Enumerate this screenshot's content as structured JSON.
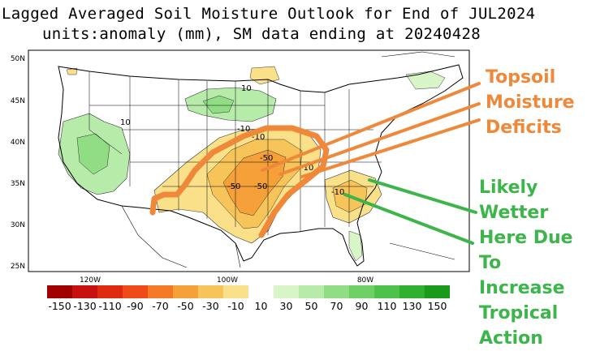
{
  "title_line1": "Lagged Averaged Soil Moisture Outlook for End of JUL2024",
  "title_line2": "units:anomaly (mm), SM data ending at 20240428",
  "lat_labels": [
    "50N",
    "45N",
    "40N",
    "35N",
    "30N",
    "25N"
  ],
  "lon_labels": [
    "120W",
    "100W",
    "80W"
  ],
  "contour_labels": [
    "10",
    "-10",
    "10",
    "-10",
    "-50",
    "-50",
    "-50",
    "-10",
    "-10"
  ],
  "colorbar": {
    "labels": [
      "-150",
      "-130",
      "-110",
      "-90",
      "-70",
      "-50",
      "-30",
      "-10",
      "10",
      "30",
      "50",
      "70",
      "90",
      "110",
      "130",
      "150"
    ],
    "colors": [
      "#a00000",
      "#c81010",
      "#e02a10",
      "#f04a18",
      "#f57a28",
      "#f5a038",
      "#f7c45a",
      "#fbe08a",
      "#ffffff",
      "#d8f5c8",
      "#b6ebaa",
      "#90dd84",
      "#6fd066",
      "#4cc24a",
      "#30b030",
      "#1a9a1a"
    ]
  },
  "callouts": {
    "topsoil": [
      "Topsoil",
      "Moisture",
      "Deficits"
    ],
    "wetter": [
      "Likely Wetter",
      "Here Due To",
      "Increase",
      "Tropical",
      "Action"
    ]
  },
  "colors": {
    "orange_annotation": "#f0883a",
    "green_annotation": "#3cb54a"
  }
}
